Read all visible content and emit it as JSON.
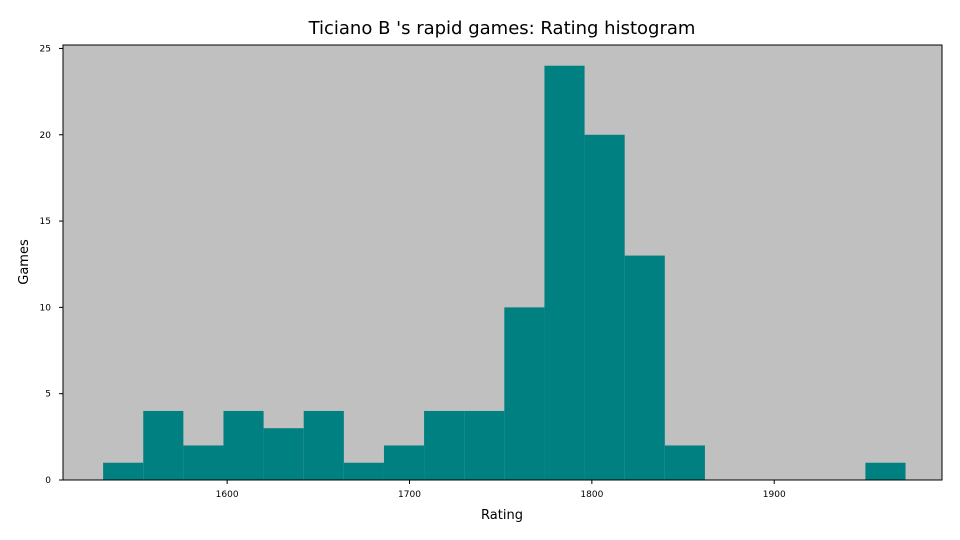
{
  "chart_data": {
    "type": "bar",
    "title": "Ticiano B 's rapid games: Rating histogram",
    "xlabel": "Rating",
    "ylabel": "Games",
    "xlim": [
      1510,
      1992
    ],
    "ylim": [
      0,
      25.2
    ],
    "xticks": [
      1600,
      1700,
      1800,
      1900
    ],
    "yticks": [
      0,
      5,
      10,
      15,
      20,
      25
    ],
    "bins": [
      {
        "x0": 1532,
        "x1": 1554,
        "count": 1
      },
      {
        "x0": 1554,
        "x1": 1576,
        "count": 4
      },
      {
        "x0": 1576,
        "x1": 1598,
        "count": 2
      },
      {
        "x0": 1598,
        "x1": 1620,
        "count": 4
      },
      {
        "x0": 1620,
        "x1": 1642,
        "count": 3
      },
      {
        "x0": 1642,
        "x1": 1664,
        "count": 4
      },
      {
        "x0": 1664,
        "x1": 1686,
        "count": 1
      },
      {
        "x0": 1686,
        "x1": 1708,
        "count": 2
      },
      {
        "x0": 1708,
        "x1": 1730,
        "count": 4
      },
      {
        "x0": 1730,
        "x1": 1752,
        "count": 4
      },
      {
        "x0": 1752,
        "x1": 1774,
        "count": 10
      },
      {
        "x0": 1774,
        "x1": 1796,
        "count": 24
      },
      {
        "x0": 1796,
        "x1": 1818,
        "count": 20
      },
      {
        "x0": 1818,
        "x1": 1840,
        "count": 13
      },
      {
        "x0": 1840,
        "x1": 1862,
        "count": 2
      },
      {
        "x0": 1862,
        "x1": 1884,
        "count": 0
      },
      {
        "x0": 1884,
        "x1": 1906,
        "count": 0
      },
      {
        "x0": 1906,
        "x1": 1928,
        "count": 0
      },
      {
        "x0": 1928,
        "x1": 1950,
        "count": 0
      },
      {
        "x0": 1950,
        "x1": 1972,
        "count": 1
      }
    ],
    "bar_color": "#008080",
    "background_color": "#c0c0c0",
    "grid": false,
    "legend": "none"
  }
}
